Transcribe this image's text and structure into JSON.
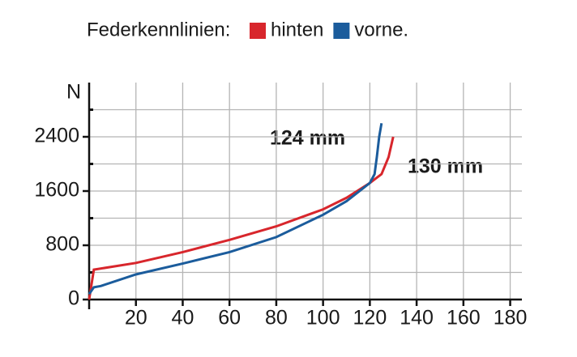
{
  "chart_data": {
    "type": "line",
    "title": "Federkennlinien:",
    "ylabel": "N",
    "xlim": [
      0,
      185
    ],
    "ylim": [
      0,
      3200
    ],
    "xticks": [
      20,
      40,
      60,
      80,
      100,
      120,
      140,
      160,
      180
    ],
    "yticks": [
      0,
      800,
      1600,
      2400
    ],
    "yminor_ticks": [
      400,
      1200,
      2000,
      2800
    ],
    "grid": true,
    "series": [
      {
        "name": "hinten",
        "color": "#d8262c",
        "x": [
          0,
          2,
          20,
          40,
          60,
          80,
          100,
          110,
          120,
          125,
          128,
          130
        ],
        "values": [
          0,
          440,
          540,
          700,
          880,
          1080,
          1330,
          1500,
          1720,
          1850,
          2100,
          2400
        ]
      },
      {
        "name": "vorne.",
        "color": "#1b5c9c",
        "x": [
          0,
          2,
          5,
          20,
          40,
          60,
          80,
          100,
          110,
          120,
          122,
          123,
          124,
          125
        ],
        "values": [
          80,
          180,
          200,
          370,
          530,
          700,
          920,
          1250,
          1450,
          1720,
          1850,
          2100,
          2400,
          2600
        ]
      }
    ],
    "annotations": [
      "124 mm",
      "130 mm"
    ]
  }
}
